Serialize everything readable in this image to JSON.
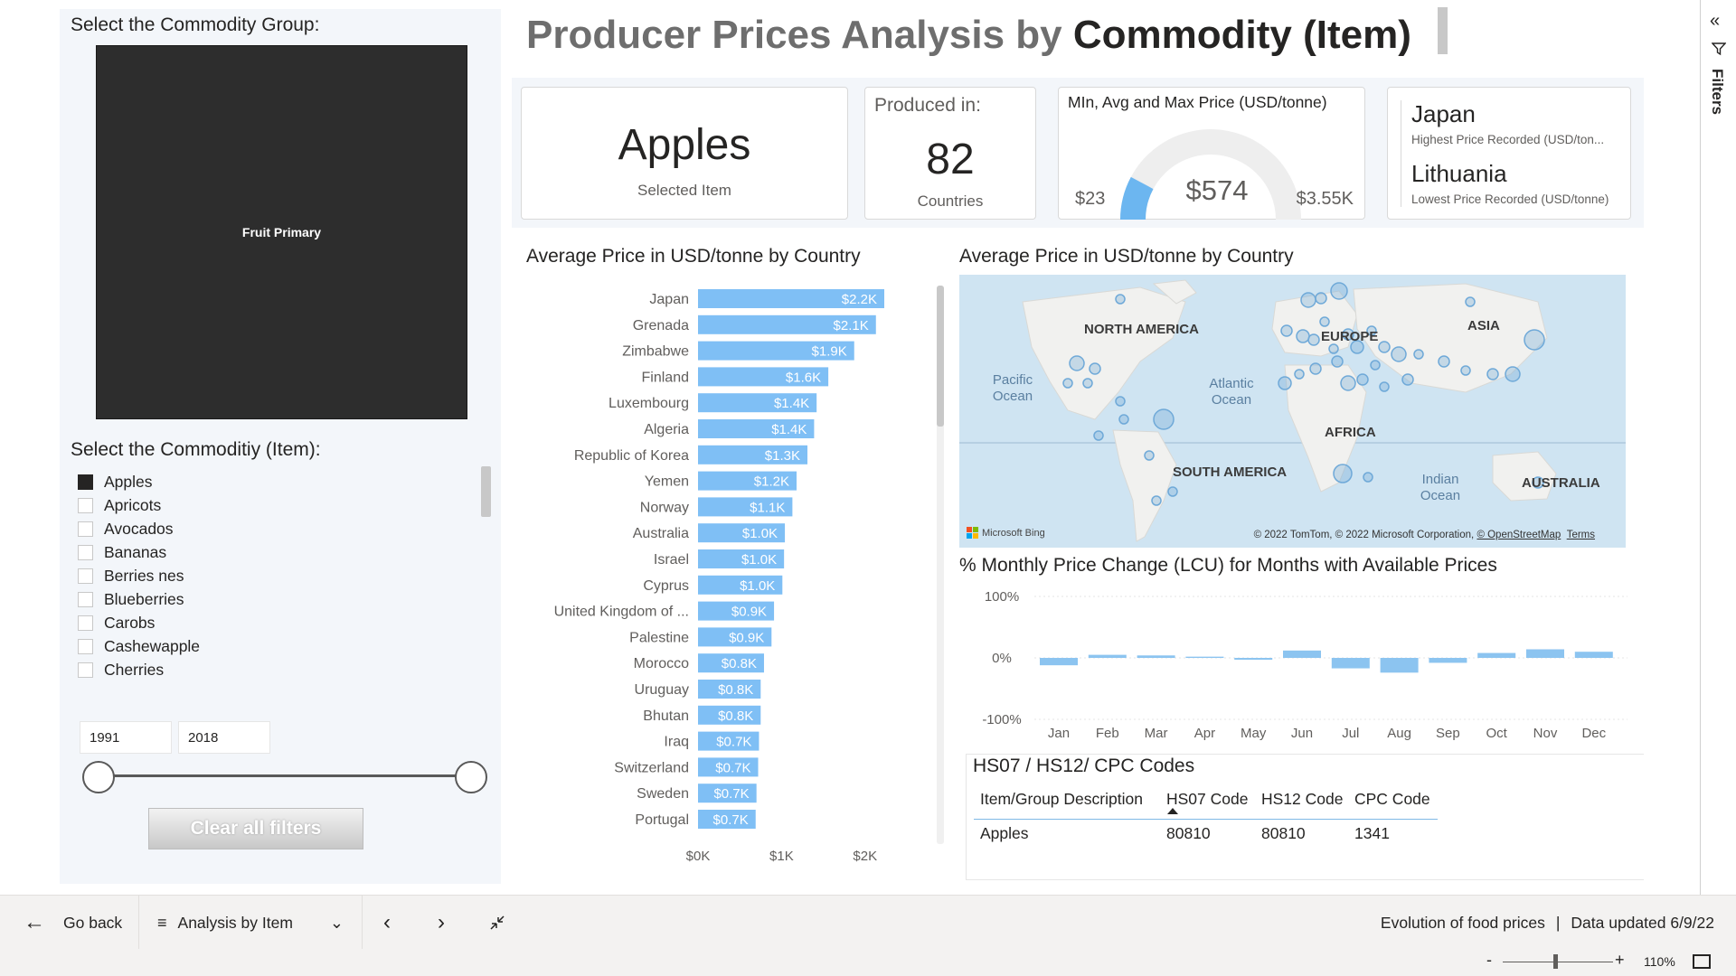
{
  "left_panel": {
    "group_title": "Select the Commodity Group:",
    "group_tile": "Fruit Primary",
    "item_title": "Select the Commoditiy (Item):",
    "items": [
      {
        "label": "Apples",
        "checked": true
      },
      {
        "label": "Apricots",
        "checked": false
      },
      {
        "label": "Avocados",
        "checked": false
      },
      {
        "label": "Bananas",
        "checked": false
      },
      {
        "label": "Berries nes",
        "checked": false
      },
      {
        "label": "Blueberries",
        "checked": false
      },
      {
        "label": "Carobs",
        "checked": false
      },
      {
        "label": "Cashewapple",
        "checked": false
      },
      {
        "label": "Cherries",
        "checked": false
      }
    ],
    "year_from": "1991",
    "year_to": "2018",
    "clear_button": "Clear all filters"
  },
  "header": {
    "title_part1": "Producer Prices Analysis by ",
    "title_part2": "Commodity (Item)"
  },
  "kpis": {
    "selected_item_value": "Apples",
    "selected_item_label": "Selected Item",
    "produced_label": "Produced in:",
    "countries_value": "82",
    "countries_label": "Countries",
    "gauge_title": "MIn, Avg and Max Price (USD/tonne)",
    "gauge_min": "$23",
    "gauge_value": "$574",
    "gauge_max": "$3.55K",
    "gauge_min_num": 23,
    "gauge_value_num": 574,
    "gauge_max_num": 3550,
    "highest_country": "Japan",
    "highest_label": "Highest Price Recorded (USD/ton...",
    "lowest_country": "Lithuania",
    "lowest_label": "Lowest Price Recorded (USD/tonne)"
  },
  "bar_chart_title": "Average Price in USD/tonne by Country",
  "map": {
    "title": "Average Price in USD/tonne by Country",
    "labels": {
      "north_america": "NORTH AMERICA",
      "europe": "EUROPE",
      "asia": "ASIA",
      "africa": "AFRICA",
      "south_america": "SOUTH AMERICA",
      "australia": "AUSTRALIA",
      "pacific": "Pacific Ocean",
      "atlantic": "Atlantic Ocean",
      "indian": "Indian Ocean"
    },
    "attribution_brand": "Microsoft Bing",
    "attribution_text": "© 2022 TomTom, © 2022 Microsoft Corporation, ",
    "attribution_osm": "© OpenStreetMap",
    "attribution_terms": "Terms"
  },
  "month_chart_title": "% Monthly Price Change (LCU) for Months with Available Prices",
  "table": {
    "title": "HS07 / HS12/ CPC Codes",
    "headers": {
      "desc": "Item/Group Description",
      "hs07": "HS07 Code",
      "hs12": "HS12 Code",
      "cpc": "CPC Code"
    },
    "row": {
      "desc": "Apples",
      "hs07": "80810",
      "hs12": "80810",
      "cpc": "1341"
    }
  },
  "filter_pane": {
    "label": "Filters"
  },
  "bottom_bar": {
    "go_back": "Go back",
    "page_name": "Analysis by Item",
    "footer_report": "Evolution of food prices",
    "footer_sep": "|",
    "footer_updated": "Data updated 6/9/22",
    "zoom": "110%"
  },
  "colors": {
    "bar": "#7fbff5",
    "gauge_fill": "#6cb6f0",
    "gauge_track": "#eeeeee",
    "map_bubble": "#6fa9d8",
    "month_bar": "#8cc4f0"
  },
  "chart_data": [
    {
      "type": "bar",
      "title": "Average Price in USD/tonne by Country",
      "categories": [
        "Japan",
        "Grenada",
        "Zimbabwe",
        "Finland",
        "Luxembourg",
        "Algeria",
        "Republic of Korea",
        "Yemen",
        "Norway",
        "Australia",
        "Israel",
        "Cyprus",
        "United Kingdom of ...",
        "Palestine",
        "Morocco",
        "Uruguay",
        "Bhutan",
        "Iraq",
        "Switzerland",
        "Sweden",
        "Portugal"
      ],
      "values": [
        2230,
        2130,
        1870,
        1560,
        1420,
        1390,
        1310,
        1180,
        1130,
        1040,
        1030,
        1010,
        910,
        880,
        790,
        750,
        750,
        730,
        720,
        700,
        690
      ],
      "data_labels": [
        "$2.2K",
        "$2.1K",
        "$1.9K",
        "$1.6K",
        "$1.4K",
        "$1.4K",
        "$1.3K",
        "$1.2K",
        "$1.1K",
        "$1.0K",
        "$1.0K",
        "$1.0K",
        "$0.9K",
        "$0.9K",
        "$0.8K",
        "$0.8K",
        "$0.8K",
        "$0.7K",
        "$0.7K",
        "$0.7K",
        "$0.7K"
      ],
      "xlim": [
        0,
        2300
      ],
      "x_ticks": [
        0,
        1000,
        2000
      ],
      "x_tick_labels": [
        "$0K",
        "$1K",
        "$2K"
      ]
    },
    {
      "type": "bar",
      "title": "% Monthly Price Change (LCU) for Months with Available Prices",
      "categories": [
        "Jan",
        "Feb",
        "Mar",
        "Apr",
        "May",
        "Jun",
        "Jul",
        "Aug",
        "Sep",
        "Oct",
        "Nov",
        "Dec"
      ],
      "values": [
        -12,
        5,
        4,
        2,
        -3,
        12,
        -17,
        -24,
        -8,
        8,
        14,
        10
      ],
      "ylim": [
        -100,
        100
      ],
      "y_ticks": [
        -100,
        0,
        100
      ],
      "y_tick_labels": [
        "-100%",
        "0%",
        "100%"
      ]
    }
  ]
}
